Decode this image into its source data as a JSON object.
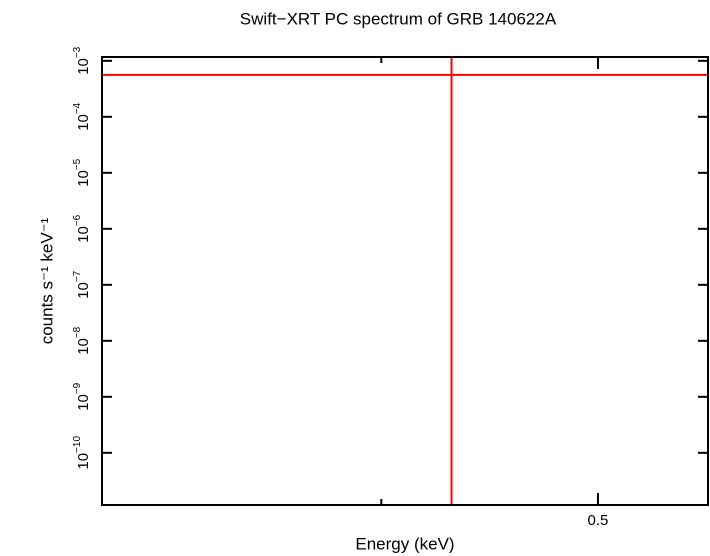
{
  "chart_data": {
    "type": "scatter",
    "title": "Swift−XRT PC spectrum of GRB 140622A",
    "x_label": "Energy (keV)",
    "y_label": "counts s⁻¹ keV⁻¹",
    "x_log": true,
    "y_log": true,
    "xlim": [
      0.3,
      0.56
    ],
    "ylim": [
      1.17e-11,
      0.00117
    ],
    "xticks": [
      0.5
    ],
    "xminor_ticks": [
      0.4
    ],
    "yticks": [
      {
        "value": 0.001,
        "label": "10",
        "exponent": "−3"
      },
      {
        "value": 0.0001,
        "label": "10",
        "exponent": "−4"
      },
      {
        "value": 1e-05,
        "label": "10",
        "exponent": "−5"
      },
      {
        "value": 1e-06,
        "label": "10",
        "exponent": "−6"
      },
      {
        "value": 1e-07,
        "label": "10",
        "exponent": "−7"
      },
      {
        "value": 1e-08,
        "label": "10",
        "exponent": "−8"
      },
      {
        "value": 1e-09,
        "label": "10",
        "exponent": "−9"
      },
      {
        "value": 1e-10,
        "label": "10",
        "exponent": "−10"
      }
    ],
    "series": [
      {
        "color": "#ff0000",
        "x": [
          0.43
        ],
        "values": [
          0.00056
        ],
        "xerr": [
          0.15
        ],
        "yerr": [
          0.00056
        ]
      }
    ]
  }
}
